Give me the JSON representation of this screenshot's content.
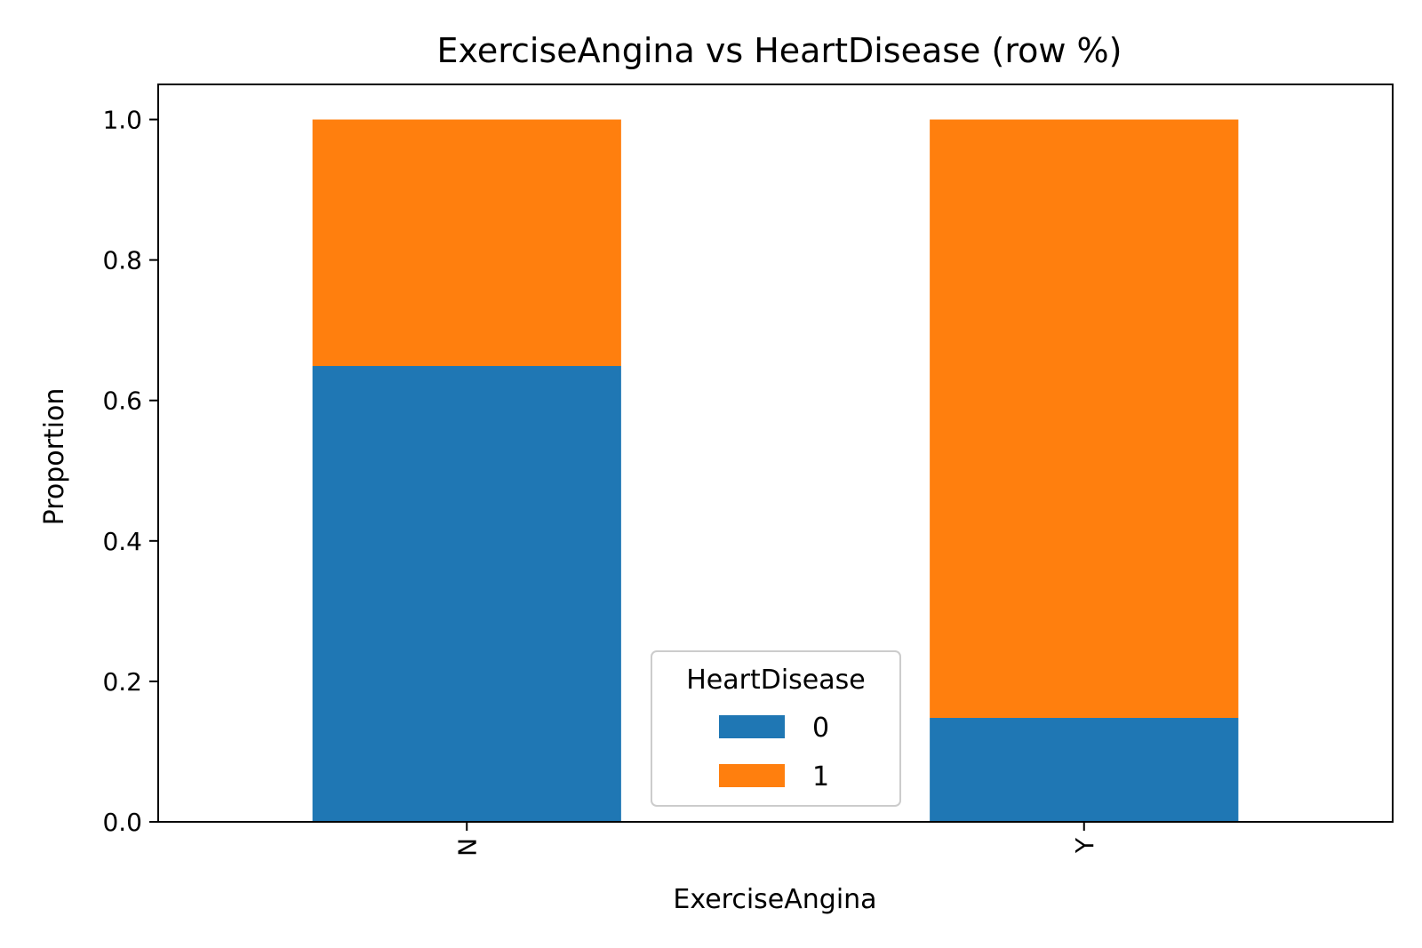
{
  "chart_data": {
    "type": "bar",
    "stacked": true,
    "title": "ExerciseAngina vs HeartDisease (row %)",
    "xlabel": "ExerciseAngina",
    "ylabel": "Proportion",
    "categories": [
      "N",
      "Y"
    ],
    "series": [
      {
        "name": "0",
        "values": [
          0.649,
          0.148
        ],
        "color": "#1f77b4"
      },
      {
        "name": "1",
        "values": [
          0.351,
          0.852
        ],
        "color": "#ff7f0e"
      }
    ],
    "ylim": [
      0,
      1.05
    ],
    "yticks": [
      0.0,
      0.2,
      0.4,
      0.6,
      0.8,
      1.0
    ],
    "ytick_labels": [
      "0.0",
      "0.2",
      "0.4",
      "0.6",
      "0.8",
      "1.0"
    ],
    "legend": {
      "title": "HeartDisease",
      "position": "lower-center"
    }
  }
}
